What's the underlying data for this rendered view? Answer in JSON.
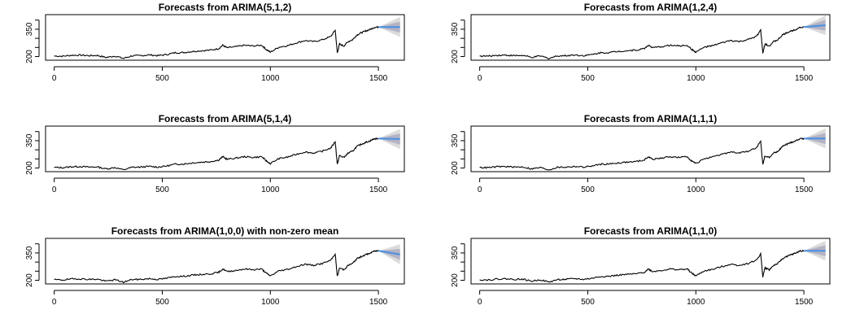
{
  "figure": {
    "panels": [
      {
        "title": "Forecasts from ARIMA(5,1,2)",
        "end_offset": 0
      },
      {
        "title": "Forecasts from ARIMA(1,2,4)",
        "end_offset": 10
      },
      {
        "title": "Forecasts from ARIMA(5,1,4)",
        "end_offset": -3
      },
      {
        "title": "Forecasts from ARIMA(1,1,1)",
        "end_offset": 0
      },
      {
        "title": "Forecasts from ARIMA(1,0,0) with non-zero mean",
        "end_offset": -20
      },
      {
        "title": "Forecasts from ARIMA(1,1,0)",
        "end_offset": 0
      }
    ]
  },
  "chart_data": {
    "type": "line",
    "series_color": "#000000",
    "forecast_color": "#4A90E2",
    "interval_colors": [
      "#DBDBDB",
      "#B3B3C4"
    ],
    "xlim": [
      -40,
      1620
    ],
    "ylim": [
      180,
      430
    ],
    "x_ticks": [
      0,
      500,
      1000,
      1500
    ],
    "y_ticks": [
      200,
      350
    ],
    "observed": {
      "x": [
        0,
        40,
        80,
        120,
        160,
        200,
        240,
        280,
        320,
        360,
        400,
        440,
        480,
        520,
        560,
        600,
        640,
        680,
        720,
        760,
        780,
        800,
        840,
        880,
        920,
        960,
        980,
        1000,
        1040,
        1080,
        1120,
        1160,
        1200,
        1240,
        1280,
        1300,
        1310,
        1320,
        1340,
        1360,
        1380,
        1400,
        1420,
        1440,
        1460,
        1480,
        1500
      ],
      "y": [
        203,
        202,
        207,
        208,
        205,
        206,
        195,
        203,
        190,
        204,
        205,
        209,
        205,
        211,
        221,
        222,
        228,
        232,
        235,
        243,
        262,
        248,
        254,
        262,
        258,
        262,
        240,
        224,
        252,
        260,
        275,
        288,
        282,
        292,
        310,
        345,
        220,
        268,
        258,
        282,
        292,
        318,
        330,
        340,
        348,
        360,
        362
      ]
    },
    "forecast": {
      "x_start": 1500,
      "x_end": 1600,
      "start_value": 362,
      "lower_80_width": 30,
      "upper_95_width": 55
    }
  }
}
